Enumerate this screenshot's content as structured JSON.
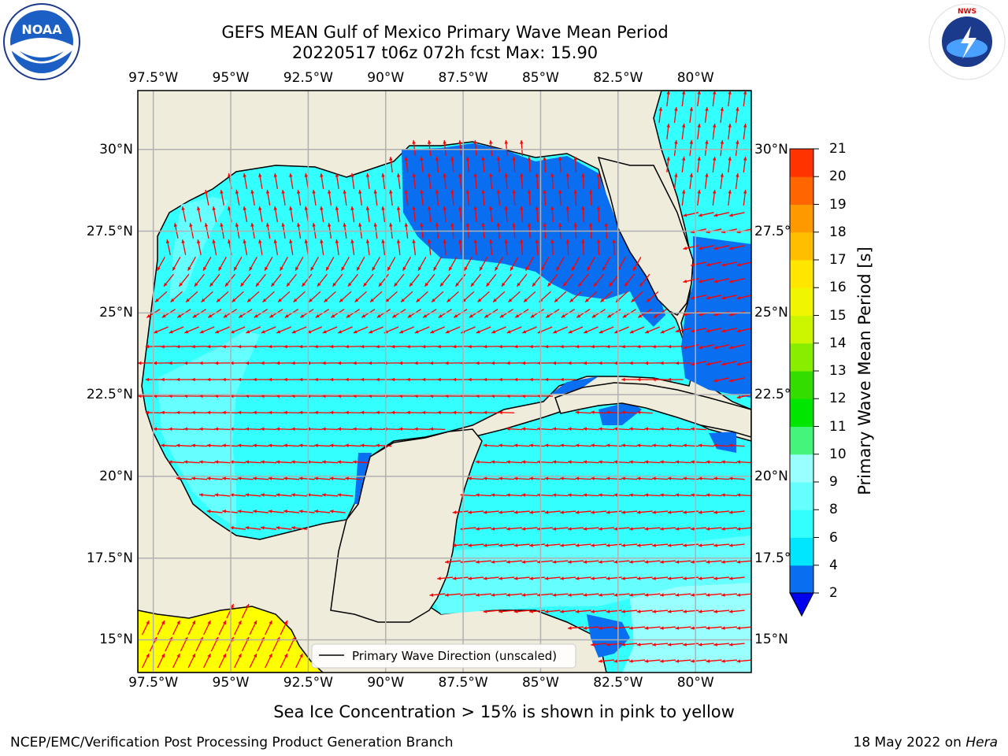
{
  "header": {
    "title_line1": "GEFS MEAN Gulf of Mexico Primary Wave Mean Period",
    "title_line2": "20220517 t06z 072h fcst   Max: 15.90"
  },
  "map": {
    "lon_ticks": [
      "97.5°W",
      "95°W",
      "92.5°W",
      "90°W",
      "87.5°W",
      "85°W",
      "82.5°W",
      "80°W"
    ],
    "lat_ticks": [
      "30°N",
      "27.5°N",
      "25°N",
      "22.5°N",
      "20°N",
      "17.5°N",
      "15°N"
    ],
    "lon_range": [
      -98,
      -78.2
    ],
    "lat_range": [
      14.0,
      31.8
    ],
    "legend_label": "Primary Wave Direction (unscaled)",
    "colors": {
      "land": "#efecdc",
      "arrow": "#ff0000",
      "grid": "#b0b0b0",
      "coast": "#000000"
    }
  },
  "colorbar": {
    "label": "Primary Wave Mean Period [s]",
    "ticks": [
      "2",
      "4",
      "6",
      "8",
      "9",
      "10",
      "11",
      "12",
      "13",
      "14",
      "15",
      "16",
      "17",
      "18",
      "19",
      "20",
      "21"
    ],
    "colors": [
      "#0a6ef0",
      "#00e6ff",
      "#33ffff",
      "#66ffff",
      "#99ffff",
      "#44f57a",
      "#00e600",
      "#33dd00",
      "#88ee00",
      "#ccf500",
      "#f0f500",
      "#ffe600",
      "#ffbf00",
      "#ff9900",
      "#ff6600",
      "#ff3300",
      "#ff0000"
    ],
    "extend_color": "#0000ee"
  },
  "note": "Sea Ice Concentration > 15% is shown in pink to yellow",
  "footer": {
    "left": "NCEP/EMC/Verification Post Processing Product Generation Branch",
    "right_date": "18 May 2022 on",
    "right_machine": "Hera"
  },
  "logos": {
    "left": "NOAA",
    "right": "NATIONAL WEATHER SERVICE"
  }
}
